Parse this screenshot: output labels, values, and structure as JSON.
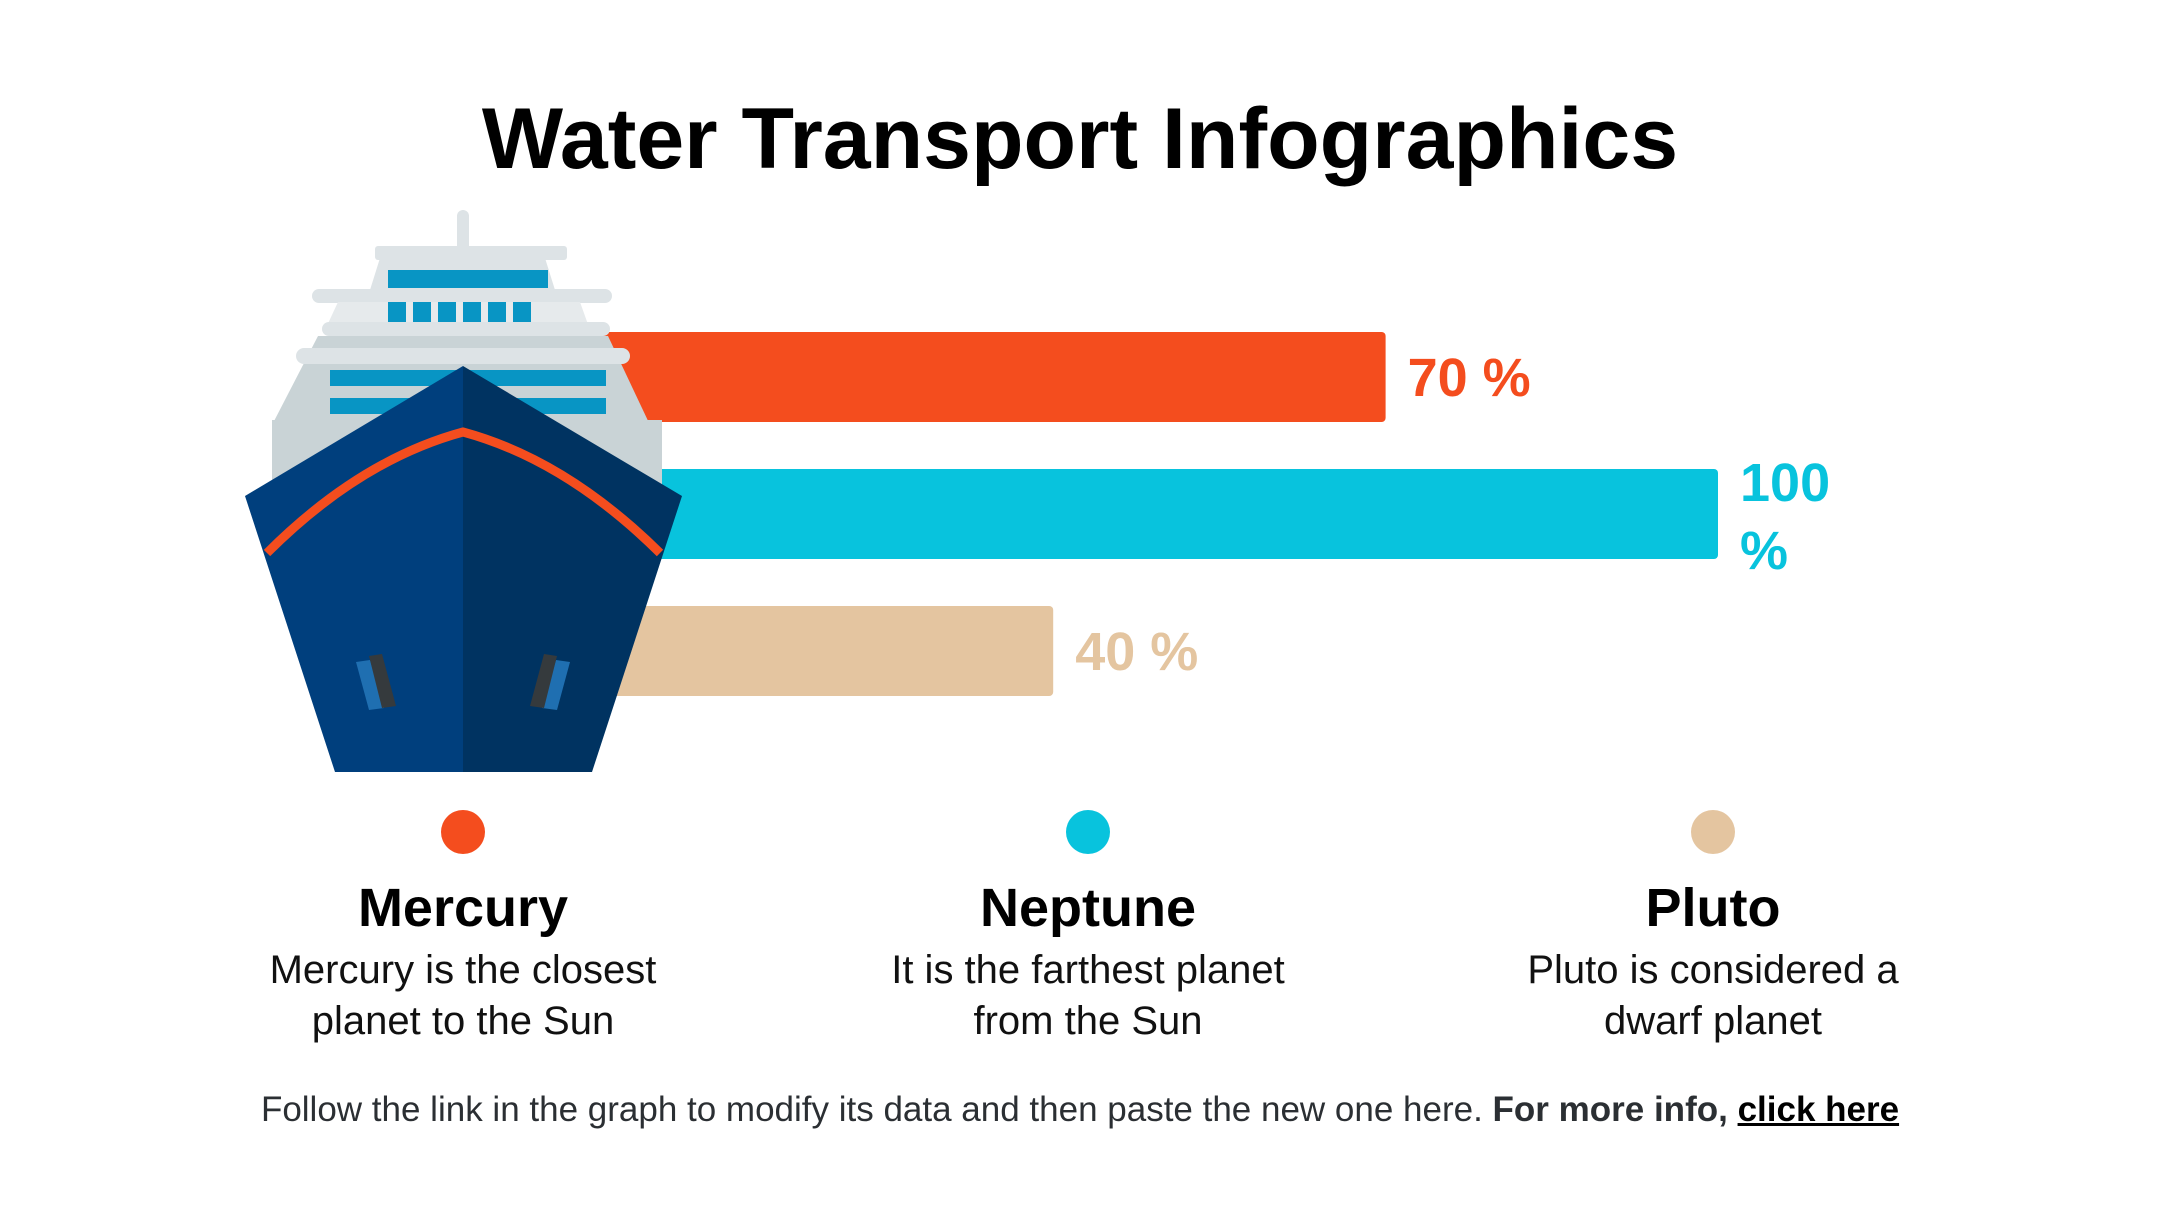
{
  "title": "Water Transport Infographics",
  "colors": {
    "mercury": "#f44d1e",
    "neptune": "#08c3dd",
    "pluto": "#e4c5a0",
    "hull_left": "#003f7d",
    "hull_right": "#003361"
  },
  "chart_data": {
    "type": "bar",
    "orientation": "horizontal",
    "categories": [
      "Mercury",
      "Neptune",
      "Pluto"
    ],
    "values": [
      70,
      100,
      40
    ],
    "value_labels": [
      "70 %",
      "100 %",
      "40 %"
    ],
    "unit": "%",
    "xlim": [
      0,
      100
    ],
    "grid": false
  },
  "legend": [
    {
      "name": "Mercury",
      "desc_line1": "Mercury is the closest",
      "desc_line2": "planet to the Sun",
      "color": "#f44d1e"
    },
    {
      "name": "Neptune",
      "desc_line1": "It is the farthest planet",
      "desc_line2": "from the Sun",
      "color": "#08c3dd"
    },
    {
      "name": "Pluto",
      "desc_line1": "Pluto is considered a",
      "desc_line2": "dwarf planet",
      "color": "#e4c5a0"
    }
  ],
  "footer": {
    "text": "Follow the link in the graph to modify its data and then paste the new one here.",
    "more": "For more info,",
    "link": "click here"
  }
}
